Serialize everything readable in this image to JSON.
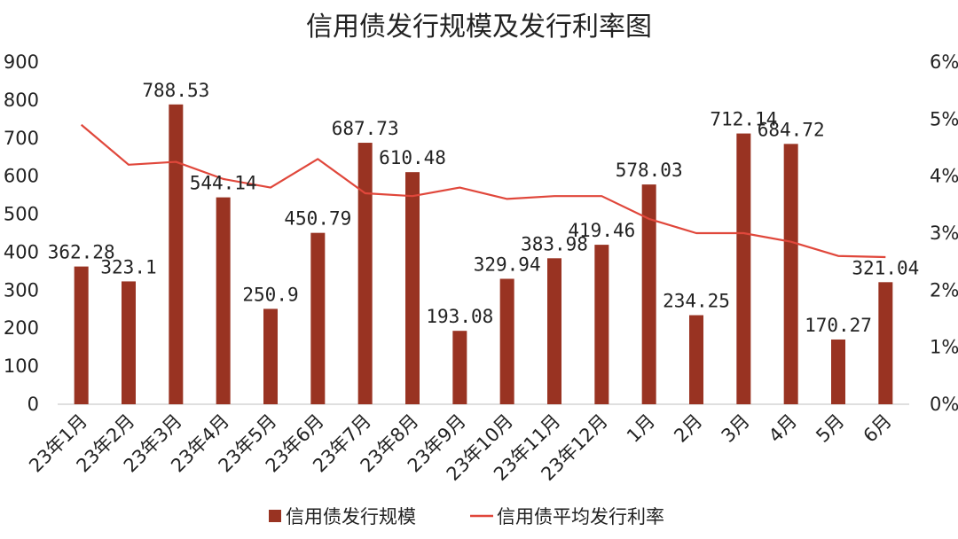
{
  "chart_data": {
    "type": "bar+line",
    "title": "信用债发行规模及发行利率图",
    "categories": [
      "23年1月",
      "23年2月",
      "23年3月",
      "23年4月",
      "23年5月",
      "23年6月",
      "23年7月",
      "23年8月",
      "23年9月",
      "23年10月",
      "23年11月",
      "23年12月",
      "1月",
      "2月",
      "3月",
      "4月",
      "5月",
      "6月"
    ],
    "series": [
      {
        "name": "信用债发行规模",
        "type": "bar",
        "axis": "left",
        "color": "#993322",
        "values": [
          362.28,
          323.1,
          788.53,
          544.14,
          250.9,
          450.79,
          687.73,
          610.48,
          193.08,
          329.94,
          383.98,
          419.46,
          578.03,
          234.25,
          712.14,
          684.72,
          170.27,
          321.04
        ],
        "labels": [
          "362.28",
          "323.1",
          "788.53",
          "544.14",
          "250.9",
          "450.79",
          "687.73",
          "610.48",
          "193.08",
          "329.94",
          "383.98",
          "419.46",
          "578.03",
          "234.25",
          "712.14",
          "684.72",
          "170.27",
          "321.04"
        ]
      },
      {
        "name": "信用债平均发行利率",
        "type": "line",
        "axis": "right",
        "color": "#e0473b",
        "values": [
          4.9,
          4.2,
          4.25,
          3.95,
          3.8,
          4.3,
          3.7,
          3.65,
          3.8,
          3.6,
          3.65,
          3.65,
          3.25,
          3.0,
          3.0,
          2.85,
          2.6,
          2.58
        ]
      }
    ],
    "y_left": {
      "ylim": [
        0,
        900
      ],
      "ticks": [
        "0",
        "100",
        "200",
        "300",
        "400",
        "500",
        "600",
        "700",
        "800",
        "900"
      ]
    },
    "y_right": {
      "ylim": [
        0,
        6
      ],
      "ticks": [
        "0%",
        "1%",
        "2%",
        "3%",
        "4%",
        "5%",
        "6%"
      ]
    },
    "grid": false,
    "legend_position": "bottom"
  }
}
